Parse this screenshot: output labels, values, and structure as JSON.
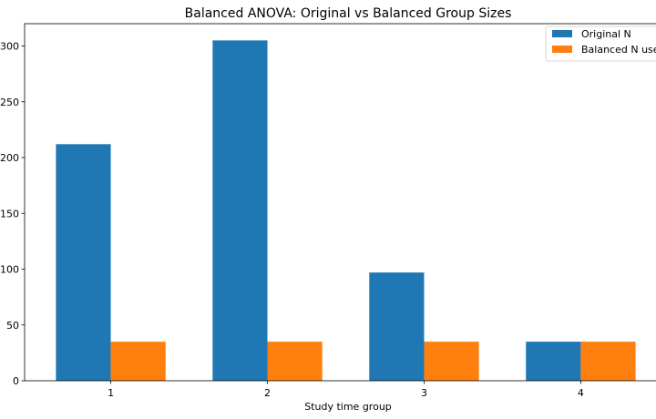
{
  "chart_data": {
    "type": "bar",
    "title": "Balanced ANOVA: Original vs Balanced Group Sizes",
    "xlabel": "Study time group",
    "ylabel": "",
    "categories": [
      "1",
      "2",
      "3",
      "4"
    ],
    "series": [
      {
        "name": "Original N",
        "color": "#1f77b4",
        "values": [
          212,
          305,
          97,
          35
        ]
      },
      {
        "name": "Balanced N used",
        "color": "#ff7f0e",
        "values": [
          35,
          35,
          35,
          35
        ]
      }
    ],
    "ylim": [
      0,
      320
    ],
    "yticks": [
      0,
      50,
      100,
      150,
      200,
      250,
      300
    ],
    "ytick_labels": [
      "0",
      "50",
      "100",
      "150",
      "200",
      "250",
      "300"
    ],
    "grid": false,
    "legend_position": "top-right"
  }
}
